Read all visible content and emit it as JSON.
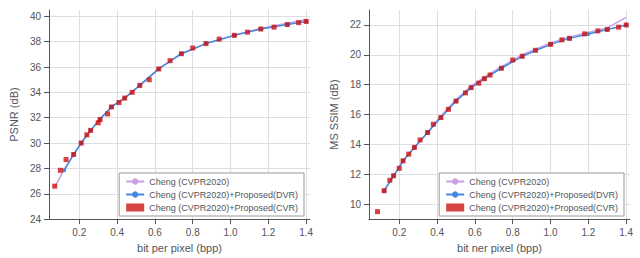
{
  "chart_data": [
    {
      "type": "line",
      "xlabel": "bit per pixel (bpp)",
      "ylabel": "PSNR (dB)",
      "xlim": [
        0.04,
        1.42
      ],
      "ylim": [
        24,
        40.5
      ],
      "xticks": [
        0.2,
        0.4,
        0.6,
        0.8,
        {
          "value": 1.0,
          "label": "1.0"
        },
        1.2,
        1.4
      ],
      "yticks": [
        24,
        26,
        28,
        30,
        32,
        34,
        36,
        38,
        40
      ],
      "grid": true,
      "legend": "lower right",
      "series": [
        {
          "name": "Cheng (CVPR2020)",
          "type": "line",
          "color": "#c8a0e8",
          "marker": "none",
          "x": [
            0.07,
            0.12,
            0.17,
            0.21,
            0.26,
            0.31,
            0.37,
            0.44,
            0.52,
            0.62,
            0.74,
            0.87,
            1.02,
            1.16,
            1.3,
            1.4
          ],
          "values": [
            26.5,
            27.9,
            29.1,
            30.0,
            31.0,
            31.9,
            32.85,
            33.55,
            34.55,
            35.85,
            37.05,
            37.85,
            38.5,
            39.05,
            39.45,
            39.75
          ]
        },
        {
          "name": "Cheng (CVPR2020)+Proposed(DVR)",
          "type": "line",
          "color": "#4488dd",
          "marker": "circle",
          "x": [
            0.12,
            0.17,
            0.21,
            0.26,
            0.31,
            0.37,
            0.44,
            0.52,
            0.62,
            0.74,
            0.87,
            1.02,
            1.16,
            1.3,
            1.4
          ],
          "values": [
            27.85,
            29.1,
            30.0,
            31.0,
            31.9,
            32.85,
            33.55,
            34.55,
            35.85,
            37.05,
            37.85,
            38.5,
            39.0,
            39.35,
            39.6
          ]
        },
        {
          "name": "Cheng (CVPR2020)+Proposed(CVR)",
          "type": "scatter",
          "color": "#cc1111",
          "marker": "square",
          "x": [
            0.07,
            0.1,
            0.13,
            0.17,
            0.21,
            0.24,
            0.26,
            0.3,
            0.31,
            0.35,
            0.37,
            0.41,
            0.44,
            0.48,
            0.52,
            0.57,
            0.62,
            0.68,
            0.74,
            0.8,
            0.87,
            0.94,
            1.02,
            1.09,
            1.16,
            1.23,
            1.3,
            1.36,
            1.4
          ],
          "values": [
            26.6,
            27.85,
            28.7,
            29.1,
            30.0,
            30.65,
            31.0,
            31.6,
            31.85,
            32.3,
            32.85,
            33.2,
            33.55,
            34.0,
            34.55,
            35.0,
            35.85,
            36.5,
            37.05,
            37.5,
            37.85,
            38.2,
            38.5,
            38.75,
            39.0,
            39.15,
            39.35,
            39.5,
            39.6
          ]
        }
      ]
    },
    {
      "type": "line",
      "xlabel": "bit ner pixel (bpp)",
      "ylabel": "MS SSIM (dB)",
      "xlim": [
        0.04,
        1.42
      ],
      "ylim": [
        9.0,
        23.0
      ],
      "xticks": [
        0.2,
        0.4,
        0.6,
        0.8,
        {
          "value": 1.0,
          "label": "1.0"
        },
        1.2,
        1.4
      ],
      "yticks": [
        10,
        12,
        14,
        16,
        18,
        20,
        22
      ],
      "grid": true,
      "legend": "lower right",
      "series": [
        {
          "name": "Cheng (CVPR2020)",
          "type": "line",
          "color": "#c8a0e8",
          "marker": "none",
          "x": [
            0.12,
            0.17,
            0.22,
            0.28,
            0.35,
            0.42,
            0.5,
            0.58,
            0.65,
            0.74,
            0.85,
            1.0,
            1.1,
            1.2,
            1.3,
            1.4
          ],
          "values": [
            10.9,
            11.9,
            12.9,
            13.8,
            14.8,
            15.9,
            17.0,
            17.9,
            18.5,
            19.2,
            20.0,
            20.8,
            21.2,
            21.5,
            21.8,
            22.5
          ]
        },
        {
          "name": "Cheng (CVPR2020)+Proposed(DVR)",
          "type": "line",
          "color": "#4488dd",
          "marker": "circle",
          "x": [
            0.12,
            0.17,
            0.22,
            0.28,
            0.35,
            0.42,
            0.5,
            0.58,
            0.65,
            0.74,
            0.85,
            1.0,
            1.1,
            1.2,
            1.3,
            1.4
          ],
          "values": [
            10.9,
            11.9,
            12.9,
            13.8,
            14.8,
            15.8,
            16.9,
            17.8,
            18.4,
            19.1,
            19.9,
            20.7,
            21.1,
            21.4,
            21.7,
            22.0
          ]
        },
        {
          "name": "Cheng (CVPR2020)+Proposed(CVR)",
          "type": "scatter",
          "color": "#cc1111",
          "marker": "square",
          "x": [
            0.085,
            0.12,
            0.15,
            0.17,
            0.2,
            0.22,
            0.25,
            0.28,
            0.31,
            0.35,
            0.38,
            0.42,
            0.46,
            0.5,
            0.55,
            0.58,
            0.62,
            0.65,
            0.68,
            0.74,
            0.8,
            0.85,
            0.92,
            1.0,
            1.06,
            1.1,
            1.18,
            1.25,
            1.3,
            1.36,
            1.4
          ],
          "values": [
            9.5,
            10.9,
            11.6,
            11.9,
            12.4,
            12.9,
            13.35,
            13.8,
            14.3,
            14.8,
            15.35,
            15.8,
            16.35,
            16.9,
            17.45,
            17.8,
            18.1,
            18.4,
            18.65,
            19.1,
            19.65,
            19.9,
            20.3,
            20.7,
            21.0,
            21.1,
            21.4,
            21.6,
            21.7,
            21.85,
            22.0
          ]
        }
      ]
    }
  ]
}
